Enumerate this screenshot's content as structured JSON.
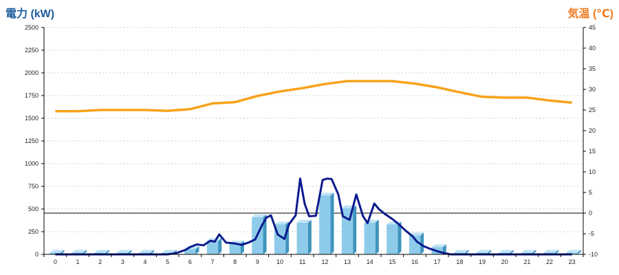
{
  "chart_data": {
    "type": "bar+line",
    "left_axis": {
      "label": "電力 (kW)",
      "ylim": [
        0,
        2500
      ],
      "ticks": [
        0,
        250,
        500,
        750,
        1000,
        1250,
        1500,
        1750,
        2000,
        2250,
        2500
      ]
    },
    "right_axis": {
      "label": "気温 (℃)",
      "ylim": [
        -10,
        45
      ],
      "ticks": [
        -10,
        -5,
        0,
        5,
        10,
        15,
        20,
        25,
        30,
        35,
        40,
        45
      ]
    },
    "categories": [
      "0",
      "1",
      "2",
      "3",
      "4",
      "5",
      "6",
      "7",
      "8",
      "9",
      "10",
      "11",
      "12",
      "13",
      "14",
      "15",
      "16",
      "17",
      "18",
      "19",
      "20",
      "21",
      "22",
      "23"
    ],
    "bars": {
      "axis": "left",
      "values": [
        20,
        20,
        20,
        20,
        20,
        20,
        60,
        150,
        120,
        410,
        330,
        350,
        650,
        510,
        350,
        330,
        210,
        80,
        20,
        20,
        20,
        20,
        20,
        20
      ]
    },
    "power_line": {
      "axis": "left",
      "x": [
        0,
        1,
        2,
        3,
        4,
        5,
        5.4,
        5.8,
        6.0,
        6.3,
        6.6,
        6.9,
        7.1,
        7.3,
        7.6,
        8.0,
        8.3,
        8.6,
        8.9,
        9.2,
        9.4,
        9.6,
        9.9,
        10.2,
        10.4,
        10.7,
        10.9,
        11.1,
        11.3,
        11.6,
        11.9,
        12.1,
        12.3,
        12.6,
        12.8,
        13.1,
        13.4,
        13.7,
        13.9,
        14.2,
        14.4,
        14.7,
        15.0,
        15.3,
        15.6,
        15.9,
        16.1,
        16.4,
        16.7,
        17.0,
        17.3,
        17.6,
        18,
        19,
        20,
        21,
        22,
        23
      ],
      "y": [
        0,
        0,
        0,
        0,
        0,
        0,
        15,
        50,
        80,
        110,
        100,
        150,
        140,
        220,
        130,
        120,
        105,
        130,
        165,
        320,
        405,
        430,
        220,
        170,
        330,
        430,
        835,
        560,
        420,
        425,
        820,
        835,
        830,
        660,
        420,
        380,
        660,
        420,
        345,
        560,
        500,
        440,
        390,
        330,
        260,
        200,
        140,
        90,
        60,
        35,
        15,
        0,
        0,
        0,
        0,
        0,
        0,
        0
      ]
    },
    "temperature_line": {
      "axis": "right",
      "x": [
        0,
        1,
        2,
        3,
        4,
        5,
        6,
        7,
        8,
        9,
        10,
        11,
        12,
        13,
        14,
        15,
        16,
        17,
        18,
        19,
        20,
        21,
        22,
        23
      ],
      "y": [
        24.7,
        24.7,
        25.0,
        25.0,
        25.0,
        24.8,
        25.2,
        26.6,
        26.9,
        28.4,
        29.5,
        30.3,
        31.3,
        32.0,
        32.0,
        32.0,
        31.4,
        30.5,
        29.3,
        28.2,
        28.0,
        28.0,
        27.3,
        26.8
      ]
    },
    "reference_line": {
      "axis": "right",
      "value": 0
    },
    "grid": true,
    "colors": {
      "left_title": "#1f5f9f",
      "right_title": "#f07b1e",
      "bar_front": "#8ecbea",
      "bar_side": "#3f94bd",
      "bar_top": "#bfe4f6",
      "power_line": "#0b1a8c",
      "temperature_line": "#f7a21a",
      "grid": "#cfcfcf"
    }
  }
}
